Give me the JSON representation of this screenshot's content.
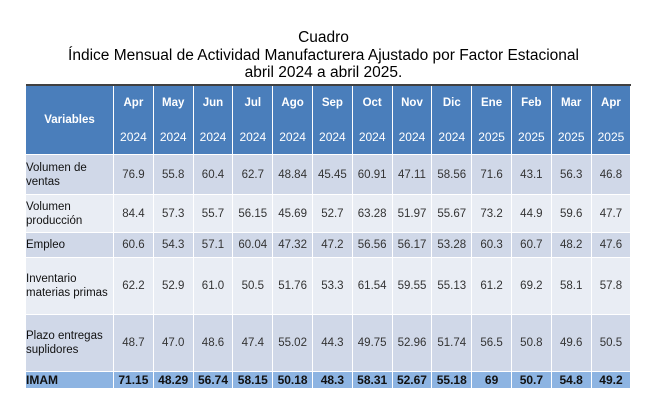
{
  "title": {
    "line1": "Cuadro",
    "line2": "Índice Mensual de Actividad Manufacturera Ajustado por Factor Estacional",
    "line3": "abril 2024 a abril 2025."
  },
  "header": {
    "variables": "Variables",
    "months": [
      {
        "m": "Apr",
        "y": "2024"
      },
      {
        "m": "May",
        "y": "2024"
      },
      {
        "m": "Jun",
        "y": "2024"
      },
      {
        "m": "Jul",
        "y": "2024"
      },
      {
        "m": "Ago",
        "y": "2024"
      },
      {
        "m": "Sep",
        "y": "2024"
      },
      {
        "m": "Oct",
        "y": "2024"
      },
      {
        "m": "Nov",
        "y": "2024"
      },
      {
        "m": "Dic",
        "y": "2024"
      },
      {
        "m": "Ene",
        "y": "2025"
      },
      {
        "m": "Feb",
        "y": "2025"
      },
      {
        "m": "Mar",
        "y": "2025"
      },
      {
        "m": "Apr",
        "y": "2025"
      }
    ]
  },
  "rows": [
    {
      "label": "Volumen de ventas",
      "values": [
        "76.9",
        "55.8",
        "60.4",
        "62.7",
        "48.84",
        "45.45",
        "60.91",
        "47.11",
        "58.56",
        "71.6",
        "43.1",
        "56.3",
        "46.8"
      ]
    },
    {
      "label": "Volumen producción",
      "values": [
        "84.4",
        "57.3",
        "55.7",
        "56.15",
        "45.69",
        "52.7",
        "63.28",
        "51.97",
        "55.67",
        "73.2",
        "44.9",
        "59.6",
        "47.7"
      ]
    },
    {
      "label": "Empleo",
      "values": [
        "60.6",
        "54.3",
        "57.1",
        "60.04",
        "47.32",
        "47.2",
        "56.56",
        "56.17",
        "53.28",
        "60.3",
        "60.7",
        "48.2",
        "47.6"
      ]
    },
    {
      "label": "Inventario materias primas",
      "values": [
        "62.2",
        "52.9",
        "61.0",
        "50.5",
        "51.76",
        "53.3",
        "61.54",
        "59.55",
        "55.13",
        "61.2",
        "69.2",
        "58.1",
        "57.8"
      ]
    },
    {
      "label": "Plazo entregas suplidores",
      "values": [
        "48.7",
        "47.0",
        "48.6",
        "47.4",
        "55.02",
        "44.3",
        "49.75",
        "52.96",
        "51.74",
        "56.5",
        "50.8",
        "49.6",
        "50.5"
      ]
    },
    {
      "label": "IMAM",
      "values": [
        "71.15",
        "48.29",
        "56.74",
        "58.15",
        "50.18",
        "48.3",
        "58.31",
        "52.67",
        "55.18",
        "69",
        "50.7",
        "54.8",
        "49.2"
      ]
    }
  ]
}
